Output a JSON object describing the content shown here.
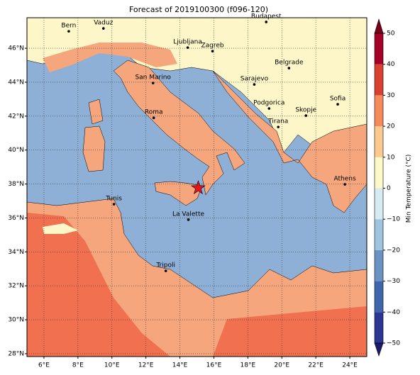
{
  "title": "Forecast of 2019100300 (f096-120)",
  "map": {
    "xlim": [
      5,
      25
    ],
    "ylim": [
      27.83,
      47.8
    ],
    "lon_ticks": [
      {
        "value": 6,
        "label": "6°E"
      },
      {
        "value": 8,
        "label": "8°E"
      },
      {
        "value": 10,
        "label": "10°E"
      },
      {
        "value": 12,
        "label": "12°E"
      },
      {
        "value": 14,
        "label": "14°E"
      },
      {
        "value": 16,
        "label": "16°E"
      },
      {
        "value": 18,
        "label": "18°E"
      },
      {
        "value": 20,
        "label": "20°E"
      },
      {
        "value": 22,
        "label": "22°E"
      },
      {
        "value": 24,
        "label": "24°E"
      }
    ],
    "lat_ticks": [
      {
        "value": 28,
        "label": "28°N"
      },
      {
        "value": 30,
        "label": "30°N"
      },
      {
        "value": 32,
        "label": "32°N"
      },
      {
        "value": 34,
        "label": "34°N"
      },
      {
        "value": 36,
        "label": "36°N"
      },
      {
        "value": 38,
        "label": "38°N"
      },
      {
        "value": 40,
        "label": "40°N"
      },
      {
        "value": 42,
        "label": "42°N"
      },
      {
        "value": 44,
        "label": "44°N"
      },
      {
        "value": 46,
        "label": "46°N"
      }
    ],
    "cities": [
      {
        "name": "Bern",
        "lon": 7.46,
        "lat": 47.0
      },
      {
        "name": "Vaduz",
        "lon": 9.5,
        "lat": 47.17
      },
      {
        "name": "Budapest",
        "lon": 19.08,
        "lat": 47.55
      },
      {
        "name": "Ljubljana",
        "lon": 14.46,
        "lat": 46.04
      },
      {
        "name": "Zagreb",
        "lon": 15.92,
        "lat": 45.83
      },
      {
        "name": "Belgrade",
        "lon": 20.42,
        "lat": 44.83
      },
      {
        "name": "San Marino",
        "lon": 12.42,
        "lat": 43.95
      },
      {
        "name": "Sarajevo",
        "lon": 18.38,
        "lat": 43.87
      },
      {
        "name": "Sofia",
        "lon": 23.29,
        "lat": 42.7
      },
      {
        "name": "Podgorica",
        "lon": 19.25,
        "lat": 42.45
      },
      {
        "name": "Skopje",
        "lon": 21.42,
        "lat": 42.03
      },
      {
        "name": "Roma",
        "lon": 12.46,
        "lat": 41.9
      },
      {
        "name": "Tirana",
        "lon": 19.79,
        "lat": 41.36
      },
      {
        "name": "Athens",
        "lon": 23.71,
        "lat": 37.98
      },
      {
        "name": "Tunis",
        "lon": 10.12,
        "lat": 36.81
      },
      {
        "name": "La Valette",
        "lon": 14.5,
        "lat": 35.9
      },
      {
        "name": "Tripoli",
        "lon": 13.17,
        "lat": 32.88
      }
    ],
    "star": {
      "lon": 15.08,
      "lat": 37.77,
      "color": "#e8141c"
    },
    "grid": true
  },
  "colorbar": {
    "label": "Min Temperature (°C)",
    "lim": [
      -50,
      50
    ],
    "ticks": [
      {
        "value": -50,
        "label": "−50"
      },
      {
        "value": -40,
        "label": "−40"
      },
      {
        "value": -30,
        "label": "−30"
      },
      {
        "value": -20,
        "label": "−20"
      },
      {
        "value": -10,
        "label": "−10"
      },
      0,
      10,
      20,
      30,
      40,
      50
    ],
    "colors": [
      "#2a3594",
      "#3f66ad",
      "#6a93c4",
      "#9ec5dd",
      "#d6ecf2",
      "#fdf9c8",
      "#fdc98f",
      "#f58b5c",
      "#d8402f",
      "#a50026"
    ],
    "under_color": "#1a1a6e",
    "over_color": "#7a0017"
  }
}
